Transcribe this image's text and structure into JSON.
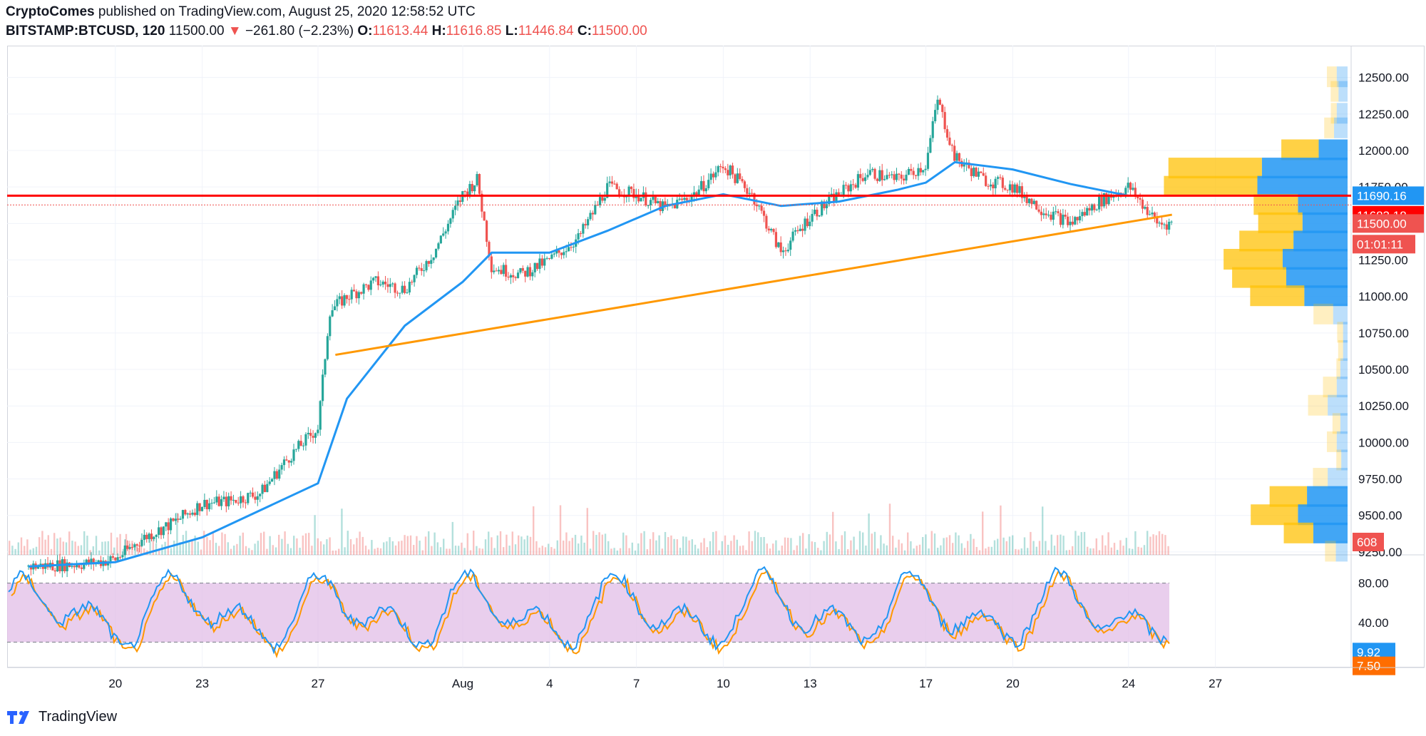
{
  "header": {
    "author": "CryptoComes",
    "published_text": "published on TradingView.com, August 25, 2020 12:58:52 UTC",
    "symbol": "BITSTAMP:BTCUSD, 120",
    "last": "11500.00",
    "arrow": "▼",
    "change": "−261.80 (−2.23%)",
    "o_label": "O:",
    "o_value": "11613.44",
    "h_label": "H:",
    "h_value": "11616.85",
    "l_label": "L:",
    "l_value": "11446.84",
    "c_label": "C:",
    "c_value": "11500.00"
  },
  "price_tags": {
    "resistance": "11690.16",
    "current_high": "11683.18",
    "last": "11500.00",
    "countdown": "01:01:11",
    "volume": "608",
    "stoch_k": "9.92",
    "stoch_d": "7.50"
  },
  "brand": {
    "name": "TradingView"
  },
  "colors": {
    "up": "#26a69a",
    "down": "#ef5350",
    "ma": "#2196f3",
    "trendline": "#ff9800",
    "resistance": "#ff0000",
    "vp_up": "#2196f3",
    "vp_down": "#ffc107",
    "stoch_k": "#2196f3",
    "stoch_d": "#ff9800",
    "stoch_band": "#e1bee7"
  },
  "chart_data": {
    "type": "candlestick",
    "price_axis": {
      "ticks": [
        9250,
        9500,
        9750,
        10000,
        10250,
        10500,
        10750,
        11000,
        11250,
        11500,
        11750,
        12000,
        12250,
        12500
      ],
      "min": 9230,
      "max": 12640
    },
    "time_axis": {
      "labels": [
        "20",
        "23",
        "27",
        "Aug",
        "4",
        "7",
        "10",
        "13",
        "17",
        "20",
        "24",
        "27"
      ]
    },
    "close_path": [
      [
        "Jul 17",
        9150
      ],
      [
        "Jul 19",
        9170
      ],
      [
        "Jul 20",
        9200
      ],
      [
        "Jul 21",
        9350
      ],
      [
        "Jul 22",
        9450
      ],
      [
        "Jul 23",
        9580
      ],
      [
        "Jul 24",
        9600
      ],
      [
        "Jul 25",
        9650
      ],
      [
        "Jul 26",
        9900
      ],
      [
        "Jul 27",
        10100
      ],
      [
        "Jul 27.4",
        10900
      ],
      [
        "Jul 28",
        11000
      ],
      [
        "Jul 29",
        11100
      ],
      [
        "Jul 30",
        11050
      ],
      [
        "Jul 31",
        11300
      ],
      [
        "Aug 1",
        11700
      ],
      [
        "Aug 1.5",
        11800
      ],
      [
        "Aug 2",
        11200
      ],
      [
        "Aug 3",
        11150
      ],
      [
        "Aug 4",
        11250
      ],
      [
        "Aug 5",
        11400
      ],
      [
        "Aug 6",
        11750
      ],
      [
        "Aug 7",
        11700
      ],
      [
        "Aug 8",
        11600
      ],
      [
        "Aug 9",
        11700
      ],
      [
        "Aug 10",
        11900
      ],
      [
        "Aug 11",
        11700
      ],
      [
        "Aug 12",
        11300
      ],
      [
        "Aug 13",
        11550
      ],
      [
        "Aug 14",
        11700
      ],
      [
        "Aug 15",
        11850
      ],
      [
        "Aug 16",
        11800
      ],
      [
        "Aug 17",
        11900
      ],
      [
        "Aug 17.4",
        12350
      ],
      [
        "Aug 18",
        11950
      ],
      [
        "Aug 19",
        11800
      ],
      [
        "Aug 20",
        11750
      ],
      [
        "Aug 21",
        11600
      ],
      [
        "Aug 22",
        11500
      ],
      [
        "Aug 23",
        11650
      ],
      [
        "Aug 24",
        11750
      ],
      [
        "Aug 25",
        11500
      ]
    ],
    "moving_average": [
      [
        "Jul 17",
        9150
      ],
      [
        "Jul 20",
        9180
      ],
      [
        "Jul 23",
        9350
      ],
      [
        "Jul 27",
        9720
      ],
      [
        "Jul 28",
        10300
      ],
      [
        "Jul 30",
        10800
      ],
      [
        "Aug 1",
        11100
      ],
      [
        "Aug 2",
        11300
      ],
      [
        "Aug 4",
        11300
      ],
      [
        "Aug 6",
        11450
      ],
      [
        "Aug 8",
        11620
      ],
      [
        "Aug 10",
        11700
      ],
      [
        "Aug 12",
        11620
      ],
      [
        "Aug 14",
        11650
      ],
      [
        "Aug 16",
        11730
      ],
      [
        "Aug 17",
        11780
      ],
      [
        "Aug 18",
        11920
      ],
      [
        "Aug 20",
        11870
      ],
      [
        "Aug 22",
        11770
      ],
      [
        "Aug 24",
        11690
      ]
    ],
    "volume_profile": [
      {
        "price": 12500,
        "up": 0.12,
        "down": 0.1
      },
      {
        "price": 12400,
        "up": 0.1,
        "down": 0.08
      },
      {
        "price": 12250,
        "up": 0.12,
        "down": 0.06
      },
      {
        "price": 12150,
        "up": 0.15,
        "down": 0.1
      },
      {
        "price": 12000,
        "up": 0.32,
        "down": 0.38
      },
      {
        "price": 11875,
        "up": 0.95,
        "down": 0.95
      },
      {
        "price": 11750,
        "up": 1.0,
        "down": 0.95
      },
      {
        "price": 11625,
        "up": 0.55,
        "down": 0.45
      },
      {
        "price": 11500,
        "up": 0.5,
        "down": 0.45
      },
      {
        "price": 11375,
        "up": 0.6,
        "down": 0.55
      },
      {
        "price": 11250,
        "up": 0.72,
        "down": 0.6
      },
      {
        "price": 11125,
        "up": 0.68,
        "down": 0.55
      },
      {
        "price": 11000,
        "up": 0.48,
        "down": 0.55
      },
      {
        "price": 10875,
        "up": 0.16,
        "down": 0.2
      },
      {
        "price": 10750,
        "up": 0.05,
        "down": 0.06
      },
      {
        "price": 10625,
        "up": 0.05,
        "down": 0.05
      },
      {
        "price": 10500,
        "up": 0.08,
        "down": 0.04
      },
      {
        "price": 10375,
        "up": 0.12,
        "down": 0.14
      },
      {
        "price": 10250,
        "up": 0.22,
        "down": 0.2
      },
      {
        "price": 10125,
        "up": 0.08,
        "down": 0.08
      },
      {
        "price": 10000,
        "up": 0.12,
        "down": 0.1
      },
      {
        "price": 9875,
        "up": 0.07,
        "down": 0.05
      },
      {
        "price": 9750,
        "up": 0.22,
        "down": 0.15
      },
      {
        "price": 9625,
        "up": 0.45,
        "down": 0.38
      },
      {
        "price": 9500,
        "up": 0.55,
        "down": 0.48
      },
      {
        "price": 9375,
        "up": 0.38,
        "down": 0.3
      },
      {
        "price": 9250,
        "up": 0.13,
        "down": 0.11
      }
    ],
    "trendline": {
      "from": [
        "Jul 27.6",
        10600
      ],
      "to": [
        "Aug 25.5",
        11560
      ]
    },
    "resistance_level": 11690.16,
    "last_price_level": 11500,
    "stochastic": {
      "ticks": [
        40,
        80
      ],
      "band": [
        20,
        80
      ],
      "last_k": 9.92,
      "last_d": 7.5
    }
  }
}
